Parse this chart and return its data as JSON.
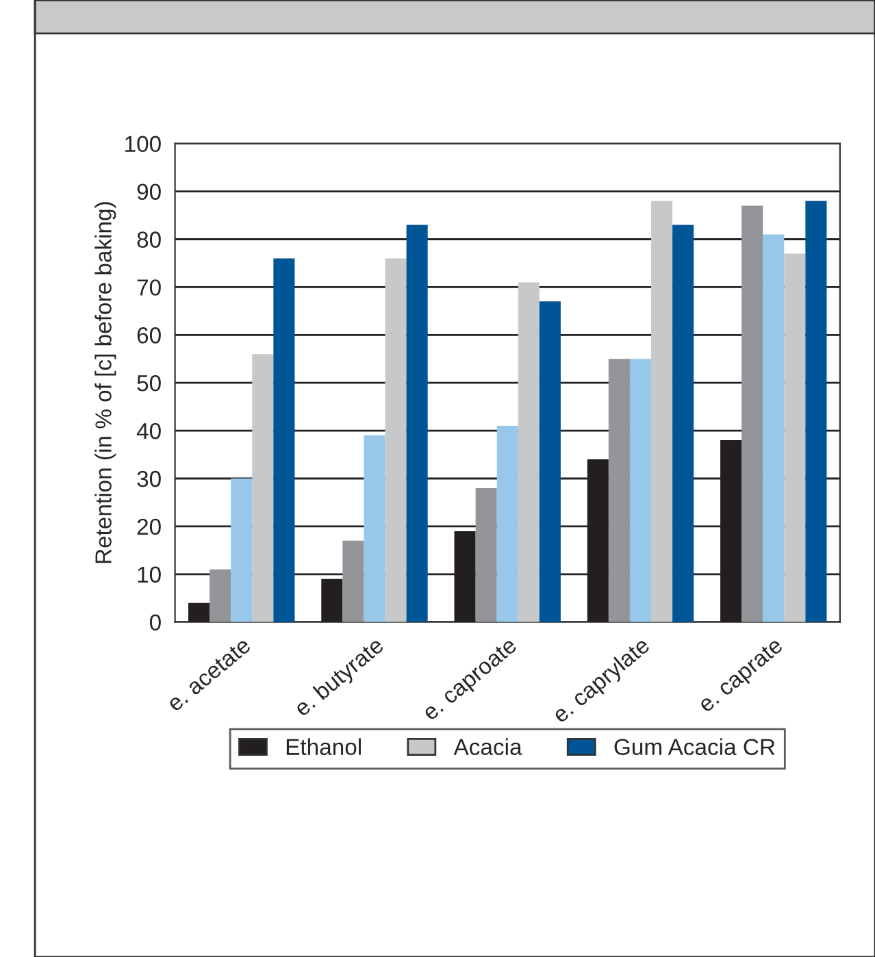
{
  "chart_data": {
    "type": "bar",
    "ylabel": "Retention (in % of [c] before baking)",
    "categories": [
      "e. acetate",
      "e. butyrate",
      "e. caproate",
      "e. caprylate",
      "e. caprate"
    ],
    "series": [
      {
        "name": "Ethanol",
        "color": "#231f20",
        "values": [
          4,
          9,
          19,
          34,
          38
        ]
      },
      {
        "color": "#939598",
        "values": [
          11,
          17,
          28,
          55,
          87
        ]
      },
      {
        "color": "#97c8ea",
        "values": [
          30,
          39,
          41,
          55,
          81
        ]
      },
      {
        "name": "Acacia",
        "color": "#c6c8ca",
        "values": [
          56,
          76,
          71,
          88,
          77
        ]
      },
      {
        "name": "Gum Acacia CR",
        "color": "#005596",
        "values": [
          76,
          83,
          67,
          83,
          88
        ]
      }
    ],
    "ylim": [
      0,
      100
    ],
    "yticks": [
      0,
      10,
      20,
      30,
      40,
      50,
      60,
      70,
      80,
      90,
      100
    ],
    "grid": "y",
    "legend": "bottom"
  }
}
